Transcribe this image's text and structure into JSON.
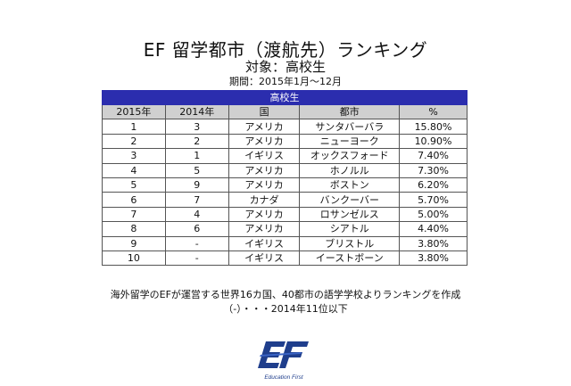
{
  "title": "EF 留学都市（渡航先）ランキング",
  "subtitle": "対象：高校生",
  "period": "期間：2015年1月〜12月",
  "table": {
    "band": "高校生",
    "headers": [
      "2015年",
      "2014年",
      "国",
      "都市",
      "%"
    ],
    "rows": [
      [
        "1",
        "3",
        "アメリカ",
        "サンタバーバラ",
        "15.80%"
      ],
      [
        "2",
        "2",
        "アメリカ",
        "ニューヨーク",
        "10.90%"
      ],
      [
        "3",
        "1",
        "イギリス",
        "オックスフォード",
        "7.40%"
      ],
      [
        "4",
        "5",
        "アメリカ",
        "ホノルル",
        "7.30%"
      ],
      [
        "5",
        "9",
        "アメリカ",
        "ボストン",
        "6.20%"
      ],
      [
        "6",
        "7",
        "カナダ",
        "バンクーバー",
        "5.70%"
      ],
      [
        "7",
        "4",
        "アメリカ",
        "ロサンゼルス",
        "5.00%"
      ],
      [
        "8",
        "6",
        "アメリカ",
        "シアトル",
        "4.40%"
      ],
      [
        "9",
        "-",
        "イギリス",
        "ブリストル",
        "3.80%"
      ],
      [
        "10",
        "-",
        "イギリス",
        "イーストボーン",
        "3.80%"
      ]
    ]
  },
  "notes": [
    "海外留学のEFが運営する世界16カ国、40都市の語学学校よりランキングを作成",
    "（-）・・・2014年11位以下"
  ],
  "logo": {
    "text": "Education First",
    "color": "#1f3e8c"
  }
}
